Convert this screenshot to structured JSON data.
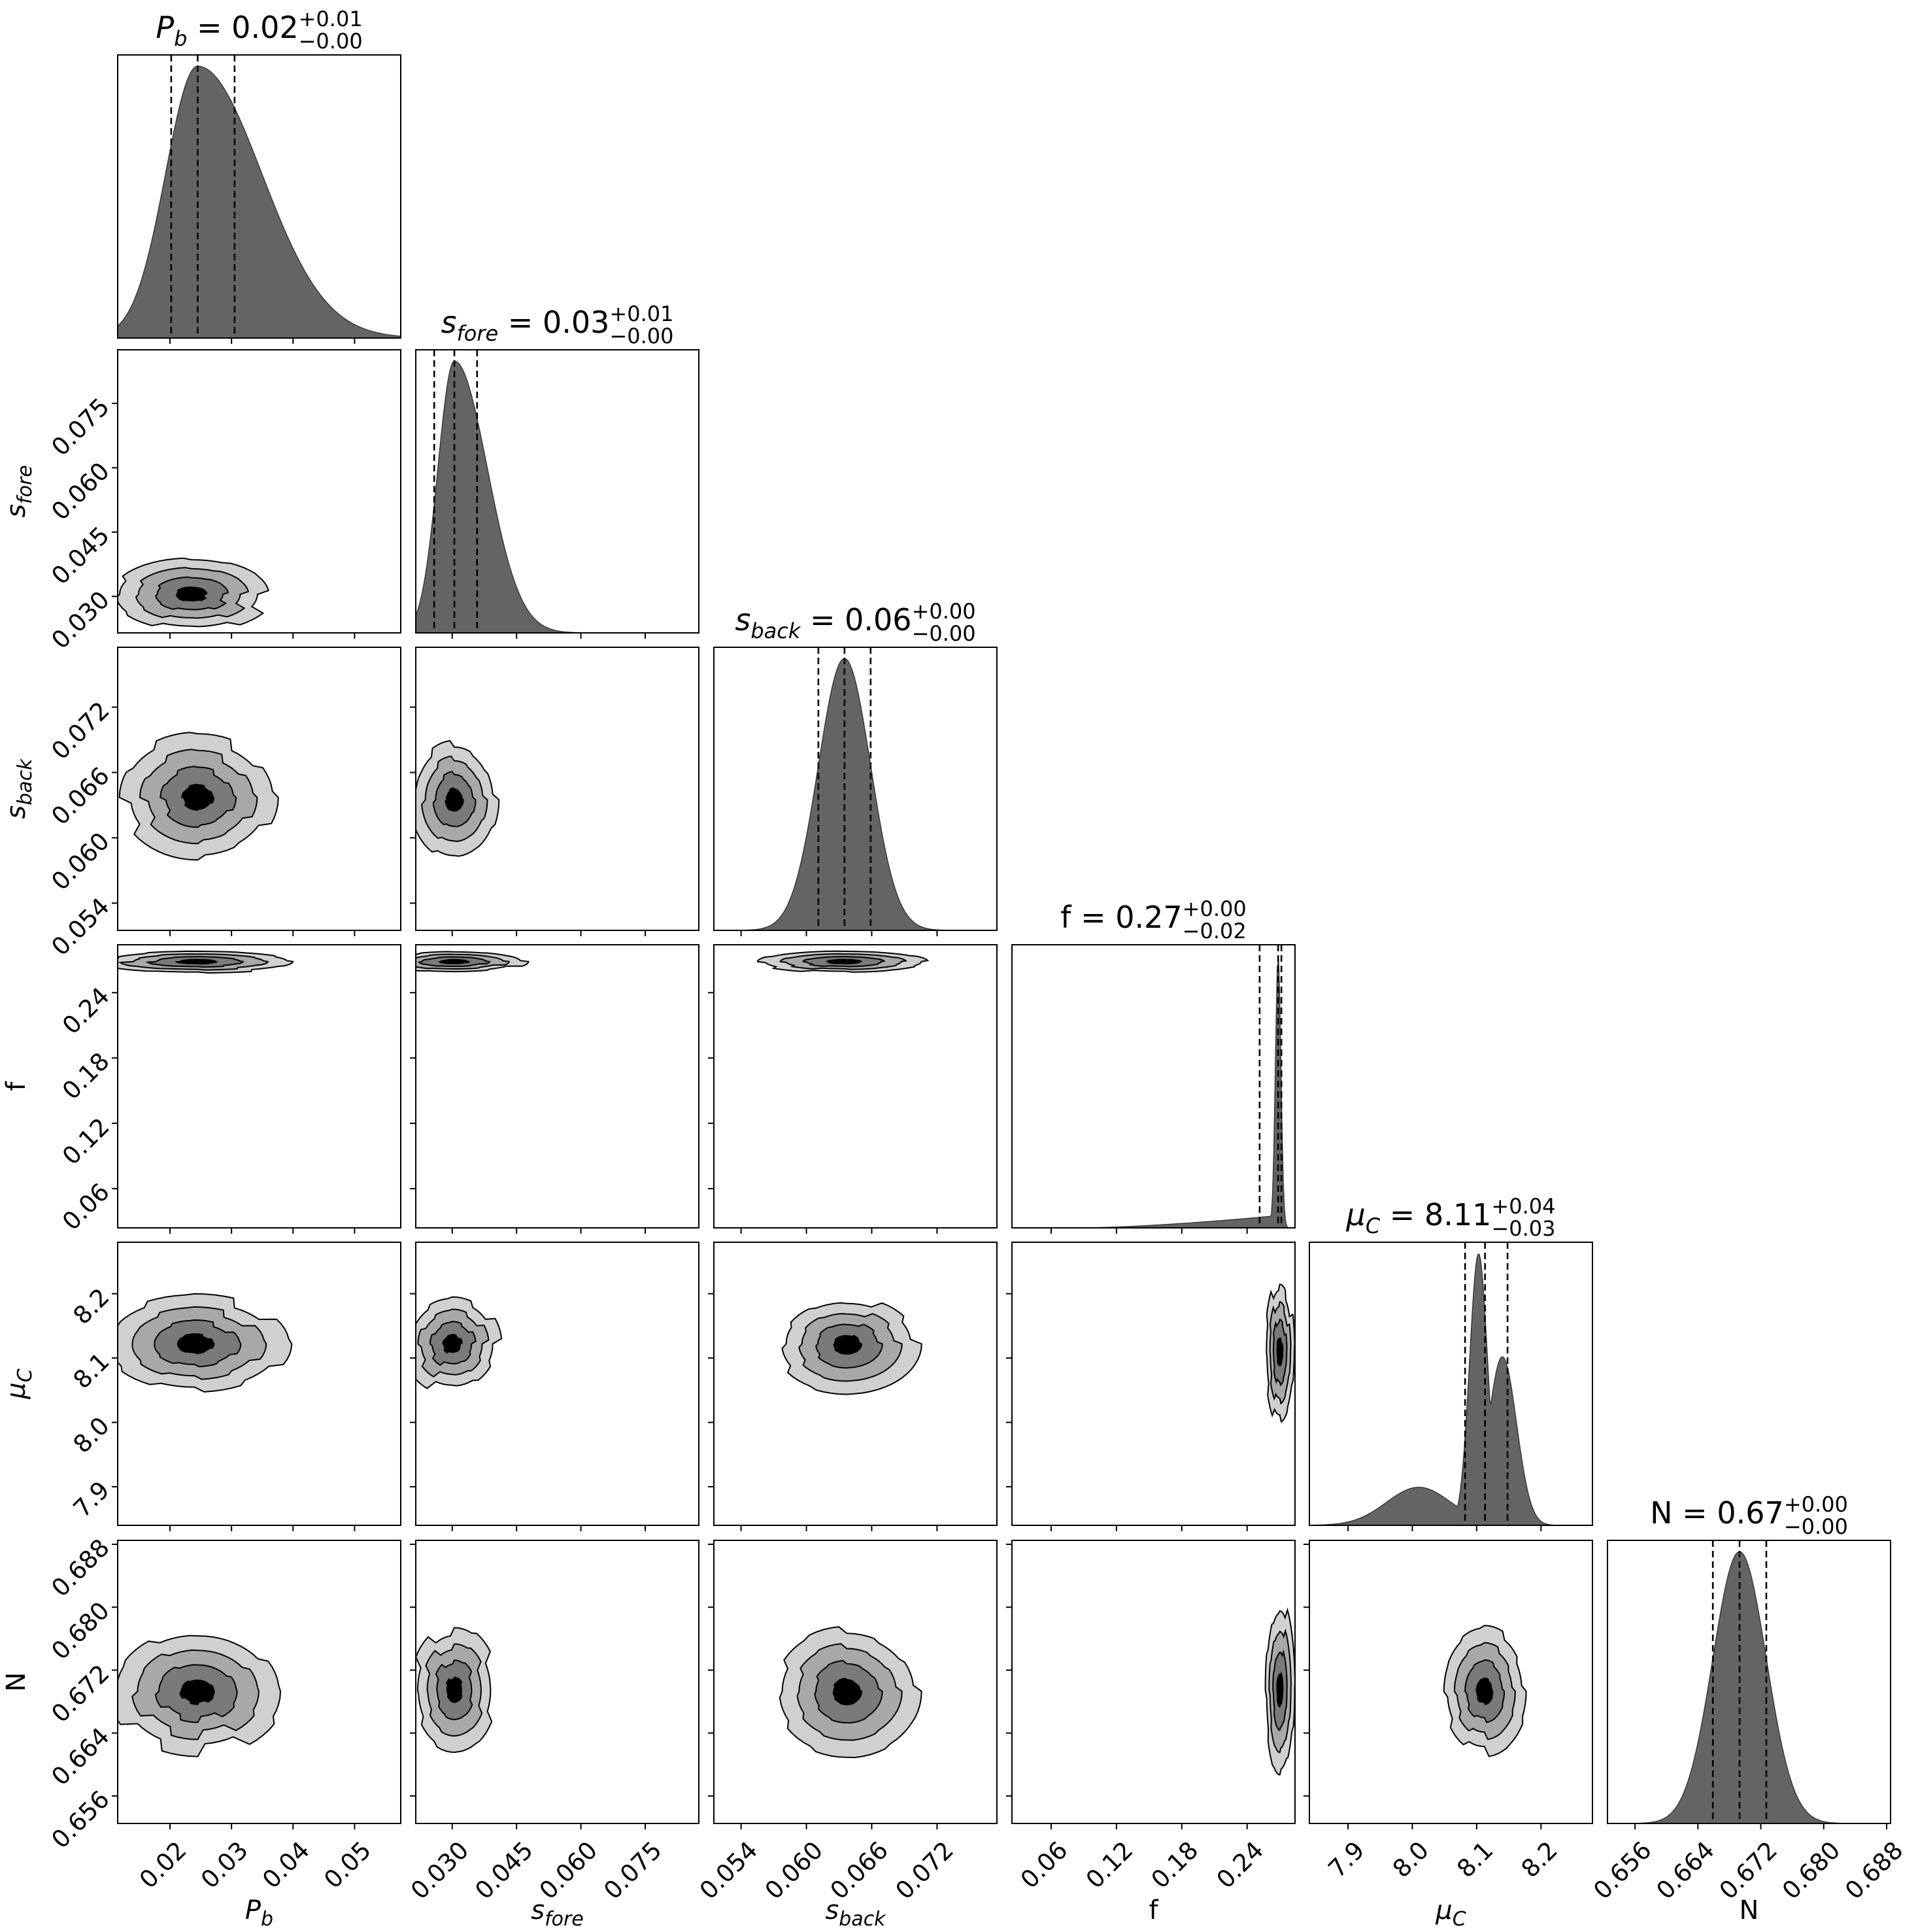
{
  "chart_data": {
    "type": "corner",
    "colors": {
      "histogram_fill": "#646464",
      "contour_levels": [
        "#d0d0d0",
        "#a8a8a8",
        "#7a7a7a",
        "#000000"
      ],
      "quantile_line": "#000000"
    },
    "parameters": [
      {
        "id": "Pb",
        "label_base": "P",
        "label_sub": "b",
        "title_base": "P",
        "title_sub": "b",
        "title_value": " = 0.02",
        "err_plus": "+0.01",
        "err_minus": "−0.00",
        "range": [
          0.0115,
          0.0575
        ],
        "ticks": [
          0.02,
          0.03,
          0.04,
          0.05
        ],
        "tick_labels": [
          "0.02",
          "0.03",
          "0.04",
          "0.05"
        ],
        "median": 0.0245,
        "q16": 0.0202,
        "q84": 0.0305,
        "hist_shape": "skew-right",
        "hist_width": 0.0065
      },
      {
        "id": "sfore",
        "label_base": "s",
        "label_sub": "fore",
        "title_base": "s",
        "title_sub": "fore",
        "title_value": " = 0.03",
        "err_plus": "+0.01",
        "err_minus": "−0.00",
        "range": [
          0.0215,
          0.0875
        ],
        "ticks": [
          0.03,
          0.045,
          0.06,
          0.075
        ],
        "tick_labels": [
          "0.030",
          "0.045",
          "0.060",
          "0.075"
        ],
        "median": 0.0305,
        "q16": 0.0258,
        "q84": 0.0358,
        "hist_shape": "skew-right",
        "hist_width": 0.0048
      },
      {
        "id": "sback",
        "label_base": "s",
        "label_sub": "back",
        "title_base": "s",
        "title_sub": "back",
        "title_value": " = 0.06",
        "err_plus": "+0.00",
        "err_minus": "−0.00",
        "range": [
          0.0515,
          0.0775
        ],
        "ticks": [
          0.054,
          0.06,
          0.066,
          0.072
        ],
        "tick_labels": [
          "0.054",
          "0.060",
          "0.066",
          "0.072"
        ],
        "median": 0.0635,
        "q16": 0.0611,
        "q84": 0.0659,
        "hist_shape": "gauss",
        "hist_width": 0.0024
      },
      {
        "id": "f",
        "label_base": "f",
        "label_sub": "",
        "title_base": "f",
        "title_sub": "",
        "title_value": " = 0.27",
        "err_plus": "+0.00",
        "err_minus": "−0.02",
        "range": [
          0.024,
          0.284
        ],
        "ticks": [
          0.06,
          0.12,
          0.18,
          0.24
        ],
        "tick_labels": [
          "0.06",
          "0.12",
          "0.18",
          "0.24"
        ],
        "median": 0.2685,
        "q16": 0.2515,
        "q84": 0.2715,
        "hist_shape": "spike-left-tail",
        "hist_width": 0.0025
      },
      {
        "id": "muC",
        "label_base": "μ",
        "label_sub": "C",
        "title_base": "μ",
        "title_sub": "C",
        "title_value": " = 8.11",
        "err_plus": "+0.04",
        "err_minus": "−0.03",
        "range": [
          7.84,
          8.28
        ],
        "ticks": [
          7.9,
          8.0,
          8.1,
          8.2
        ],
        "tick_labels": [
          "7.9",
          "8.0",
          "8.1",
          "8.2"
        ],
        "median": 8.113,
        "q16": 8.082,
        "q84": 8.148,
        "hist_shape": "double-peak-left-tail",
        "hist_width": 0.02
      },
      {
        "id": "N",
        "label_base": "N",
        "label_sub": "",
        "title_base": "N",
        "title_sub": "",
        "title_value": " = 0.67",
        "err_plus": "+0.00",
        "err_minus": "−0.00",
        "range": [
          0.6525,
          0.6885
        ],
        "ticks": [
          0.656,
          0.664,
          0.672,
          0.68,
          0.688
        ],
        "tick_labels": [
          "0.656",
          "0.664",
          "0.672",
          "0.680",
          "0.688"
        ],
        "median": 0.6693,
        "q16": 0.6659,
        "q84": 0.6727,
        "hist_shape": "gauss",
        "hist_width": 0.0034
      }
    ],
    "contour_panels": [
      {
        "x": "Pb",
        "y": "sfore",
        "cx": 0.0235,
        "cy": 0.0305,
        "sx": 0.0058,
        "sy": 0.0038
      },
      {
        "x": "Pb",
        "y": "sback",
        "cx": 0.0245,
        "cy": 0.0637,
        "sx": 0.0058,
        "sy": 0.0026
      },
      {
        "x": "sfore",
        "y": "sback",
        "cx": 0.0305,
        "cy": 0.0635,
        "sx": 0.0045,
        "sy": 0.0024
      },
      {
        "x": "Pb",
        "y": "f",
        "cx": 0.0245,
        "cy": 0.2685,
        "sx": 0.0075,
        "sy": 0.0045
      },
      {
        "x": "sfore",
        "y": "f",
        "cx": 0.0305,
        "cy": 0.2685,
        "sx": 0.0075,
        "sy": 0.0045
      },
      {
        "x": "sback",
        "y": "f",
        "cx": 0.0635,
        "cy": 0.2685,
        "sx": 0.0035,
        "sy": 0.0045
      },
      {
        "x": "Pb",
        "y": "muC",
        "cx": 0.024,
        "cy": 8.122,
        "sx": 0.0068,
        "sy": 0.034
      },
      {
        "x": "sfore",
        "y": "muC",
        "cx": 0.03,
        "cy": 8.122,
        "sx": 0.005,
        "sy": 0.034
      },
      {
        "x": "sback",
        "y": "muC",
        "cx": 0.0637,
        "cy": 8.122,
        "sx": 0.003,
        "sy": 0.034
      },
      {
        "x": "f",
        "y": "muC",
        "cx": 0.27,
        "cy": 8.11,
        "sx": 0.006,
        "sy": 0.05
      },
      {
        "x": "Pb",
        "y": "N",
        "cx": 0.0245,
        "cy": 0.6693,
        "sx": 0.0062,
        "sy": 0.0036
      },
      {
        "x": "sfore",
        "y": "N",
        "cx": 0.0305,
        "cy": 0.6695,
        "sx": 0.0045,
        "sy": 0.0036
      },
      {
        "x": "sback",
        "y": "N",
        "cx": 0.0637,
        "cy": 0.6693,
        "sx": 0.003,
        "sy": 0.0036
      },
      {
        "x": "f",
        "y": "N",
        "cx": 0.27,
        "cy": 0.6695,
        "sx": 0.006,
        "sy": 0.005
      },
      {
        "x": "muC",
        "y": "N",
        "cx": 8.112,
        "cy": 0.6693,
        "sx": 0.03,
        "sy": 0.0036
      }
    ]
  }
}
